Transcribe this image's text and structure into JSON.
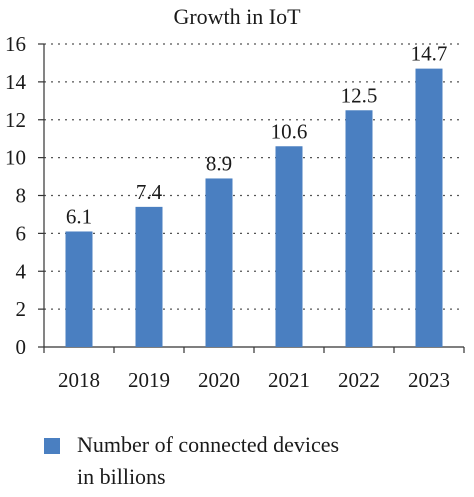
{
  "chart_data": {
    "type": "bar",
    "title": "Growth in IoT",
    "categories": [
      "2018",
      "2019",
      "2020",
      "2021",
      "2022",
      "2023"
    ],
    "series": [
      {
        "name": "Number of connected devices in billions",
        "values": [
          6.1,
          7.4,
          8.9,
          10.6,
          12.5,
          14.7
        ],
        "color": "#4a7fc1"
      }
    ],
    "data_labels": [
      "6.1",
      "7.4",
      "8.9",
      "10.6",
      "12.5",
      "14.7"
    ],
    "yticks": [
      "0",
      "2",
      "4",
      "6",
      "8",
      "10",
      "12",
      "14",
      "16"
    ],
    "ylim": [
      0,
      16
    ],
    "grid": true,
    "legend_position": "bottom-left",
    "legend_lines": [
      "Number of connected devices",
      "in billions"
    ]
  }
}
